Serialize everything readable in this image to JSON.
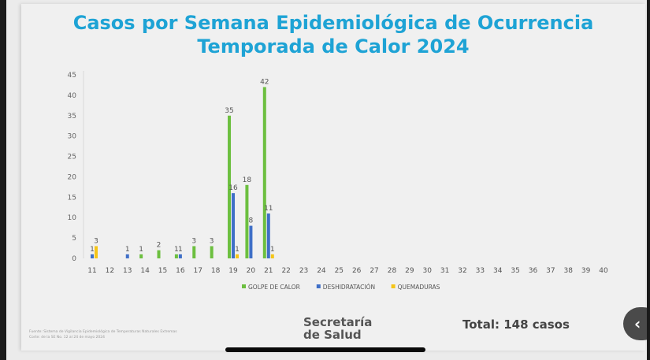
{
  "chart_data": {
    "type": "bar",
    "title": "Casos por Semana Epidemiológica de Ocurrencia",
    "subtitle": "Temporada de Calor 2024",
    "categories": [
      "11",
      "12",
      "13",
      "14",
      "15",
      "16",
      "17",
      "18",
      "19",
      "20",
      "21",
      "22",
      "23",
      "24",
      "25",
      "26",
      "27",
      "28",
      "29",
      "30",
      "31",
      "32",
      "33",
      "34",
      "35",
      "36",
      "37",
      "38",
      "39",
      "40"
    ],
    "series": [
      {
        "name": "GOLPE DE CALOR",
        "color": "#6cbf3f",
        "values": [
          0,
          0,
          0,
          1,
          2,
          1,
          3,
          3,
          35,
          18,
          42,
          0,
          0,
          0,
          0,
          0,
          0,
          0,
          0,
          0,
          0,
          0,
          0,
          0,
          0,
          0,
          0,
          0,
          0,
          0
        ]
      },
      {
        "name": "DESHIDRATACIÓN",
        "color": "#3f6fc7",
        "values": [
          1,
          0,
          1,
          0,
          0,
          1,
          0,
          0,
          16,
          8,
          11,
          0,
          0,
          0,
          0,
          0,
          0,
          0,
          0,
          0,
          0,
          0,
          0,
          0,
          0,
          0,
          0,
          0,
          0,
          0
        ]
      },
      {
        "name": "QUEMADURAS",
        "color": "#f5c518",
        "values": [
          3,
          0,
          0,
          0,
          0,
          0,
          0,
          0,
          1,
          0,
          1,
          0,
          0,
          0,
          0,
          0,
          0,
          0,
          0,
          0,
          0,
          0,
          0,
          0,
          0,
          0,
          0,
          0,
          0,
          0
        ]
      }
    ],
    "ylim": [
      0,
      45
    ],
    "yticks": [
      0,
      5,
      10,
      15,
      20,
      25,
      30,
      35,
      40,
      45
    ],
    "legend": "bottom",
    "grid": false
  },
  "footer": {
    "source": "Fuente: Sistema de Vigilancia Epidemiológica de Temperaturas Naturales Extremas",
    "cutoff": "Corte: de la SE No. 12 al 24 de mayo 2024"
  },
  "logo": {
    "line1": "Secretaría",
    "line2": "de Salud"
  },
  "total": "Total: 148 casos",
  "back_icon": "chevron-left-icon",
  "back_glyph": "‹"
}
